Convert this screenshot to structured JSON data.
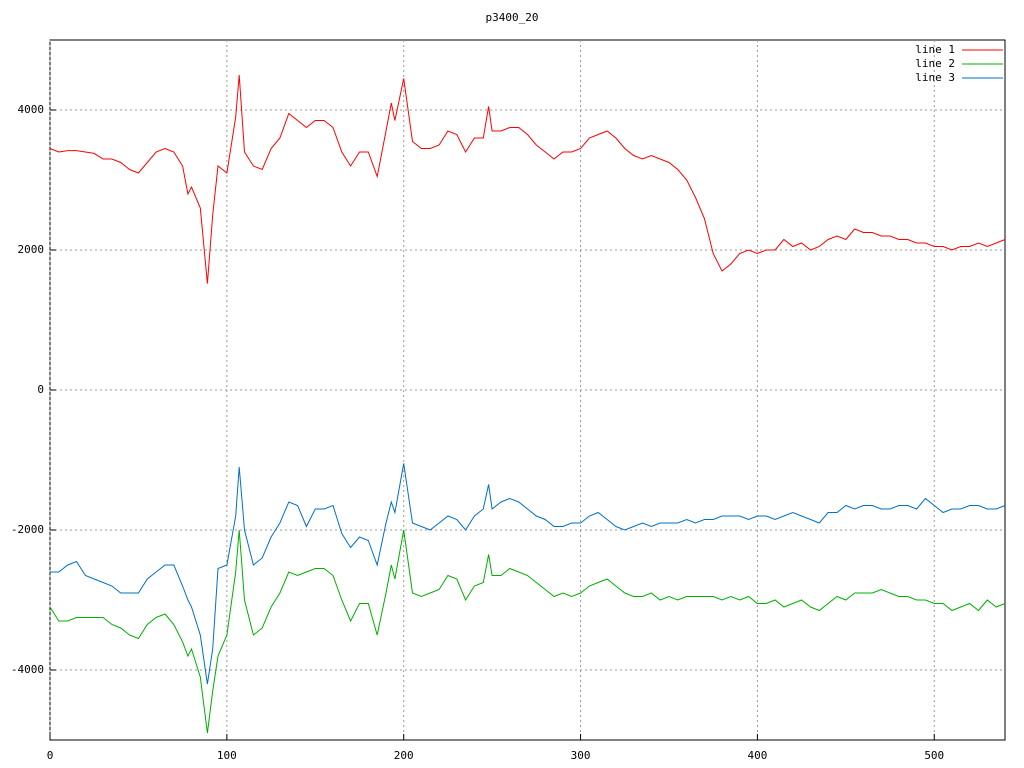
{
  "chart_data": {
    "type": "line",
    "title": "p3400_20",
    "x": [
      0,
      5,
      10,
      15,
      20,
      25,
      30,
      35,
      40,
      45,
      50,
      55,
      60,
      65,
      70,
      75,
      78,
      80,
      85,
      89,
      92,
      95,
      100,
      105,
      107,
      110,
      115,
      120,
      125,
      130,
      135,
      140,
      145,
      150,
      155,
      160,
      165,
      170,
      175,
      180,
      185,
      190,
      193,
      195,
      200,
      205,
      210,
      215,
      220,
      225,
      230,
      235,
      240,
      245,
      248,
      250,
      255,
      260,
      265,
      270,
      275,
      280,
      285,
      290,
      295,
      300,
      305,
      310,
      315,
      320,
      325,
      330,
      335,
      340,
      345,
      350,
      355,
      360,
      365,
      370,
      375,
      380,
      385,
      390,
      395,
      400,
      405,
      410,
      415,
      420,
      425,
      430,
      435,
      440,
      445,
      450,
      455,
      460,
      465,
      470,
      475,
      480,
      485,
      490,
      495,
      500,
      505,
      510,
      515,
      520,
      525,
      530,
      535,
      540
    ],
    "series": [
      {
        "name": "line 1",
        "color": "#ff0000",
        "values": [
          3450,
          3400,
          3420,
          3420,
          3400,
          3380,
          3300,
          3300,
          3250,
          3150,
          3100,
          3250,
          3400,
          3450,
          3400,
          3200,
          2800,
          2900,
          2600,
          1520,
          2500,
          3200,
          3100,
          3900,
          4500,
          3400,
          3200,
          3150,
          3450,
          3600,
          3950,
          3850,
          3750,
          3850,
          3850,
          3750,
          3400,
          3200,
          3400,
          3400,
          3050,
          3700,
          4100,
          3850,
          4450,
          3550,
          3450,
          3450,
          3500,
          3700,
          3650,
          3400,
          3600,
          3600,
          4050,
          3700,
          3700,
          3750,
          3750,
          3650,
          3500,
          3400,
          3300,
          3400,
          3400,
          3450,
          3600,
          3650,
          3700,
          3600,
          3450,
          3350,
          3300,
          3350,
          3300,
          3250,
          3150,
          3000,
          2750,
          2450,
          1950,
          1700,
          1800,
          1950,
          2000,
          1950,
          2000,
          2000,
          2150,
          2050,
          2100,
          2000,
          2050,
          2150,
          2200,
          2150,
          2300,
          2250,
          2250,
          2200,
          2200,
          2150,
          2150,
          2100,
          2100,
          2050,
          2050,
          2000,
          2050,
          2050,
          2100,
          2050,
          2100,
          2150
        ]
      },
      {
        "name": "line 2",
        "color": "#00b000",
        "values": [
          -3100,
          -3300,
          -3300,
          -3250,
          -3250,
          -3250,
          -3250,
          -3350,
          -3400,
          -3500,
          -3550,
          -3350,
          -3250,
          -3200,
          -3350,
          -3600,
          -3800,
          -3700,
          -4100,
          -4900,
          -4300,
          -3800,
          -3500,
          -2600,
          -2000,
          -3000,
          -3500,
          -3400,
          -3100,
          -2900,
          -2600,
          -2650,
          -2600,
          -2550,
          -2550,
          -2650,
          -3000,
          -3300,
          -3050,
          -3050,
          -3500,
          -2900,
          -2500,
          -2700,
          -2000,
          -2900,
          -2950,
          -2900,
          -2850,
          -2650,
          -2700,
          -3000,
          -2800,
          -2750,
          -2350,
          -2650,
          -2650,
          -2550,
          -2600,
          -2650,
          -2750,
          -2850,
          -2950,
          -2900,
          -2950,
          -2900,
          -2800,
          -2750,
          -2700,
          -2800,
          -2900,
          -2950,
          -2950,
          -2900,
          -3000,
          -2950,
          -3000,
          -2950,
          -2950,
          -2950,
          -2950,
          -3000,
          -2950,
          -3000,
          -2950,
          -3050,
          -3050,
          -3000,
          -3100,
          -3050,
          -3000,
          -3100,
          -3150,
          -3050,
          -2950,
          -3000,
          -2900,
          -2900,
          -2900,
          -2850,
          -2900,
          -2950,
          -2950,
          -3000,
          -3000,
          -3050,
          -3050,
          -3150,
          -3100,
          -3050,
          -3150,
          -3000,
          -3100,
          -3050
        ]
      },
      {
        "name": "line 3",
        "color": "#0070c8",
        "values": [
          -2600,
          -2600,
          -2500,
          -2450,
          -2650,
          -2700,
          -2750,
          -2800,
          -2900,
          -2900,
          -2900,
          -2700,
          -2600,
          -2500,
          -2500,
          -2800,
          -3000,
          -3100,
          -3500,
          -4200,
          -3700,
          -2550,
          -2500,
          -1800,
          -1100,
          -2000,
          -2500,
          -2400,
          -2100,
          -1900,
          -1600,
          -1650,
          -1950,
          -1700,
          -1700,
          -1650,
          -2050,
          -2250,
          -2100,
          -2150,
          -2500,
          -1900,
          -1600,
          -1750,
          -1050,
          -1900,
          -1950,
          -2000,
          -1900,
          -1800,
          -1850,
          -2000,
          -1800,
          -1700,
          -1350,
          -1700,
          -1600,
          -1550,
          -1600,
          -1700,
          -1800,
          -1850,
          -1950,
          -1950,
          -1900,
          -1900,
          -1800,
          -1750,
          -1850,
          -1950,
          -2000,
          -1950,
          -1900,
          -1950,
          -1900,
          -1900,
          -1900,
          -1850,
          -1900,
          -1850,
          -1850,
          -1800,
          -1800,
          -1800,
          -1850,
          -1800,
          -1800,
          -1850,
          -1800,
          -1750,
          -1800,
          -1850,
          -1900,
          -1750,
          -1750,
          -1650,
          -1700,
          -1650,
          -1650,
          -1700,
          -1700,
          -1650,
          -1650,
          -1700,
          -1550,
          -1650,
          -1750,
          -1700,
          -1700,
          -1650,
          -1650,
          -1700,
          -1700,
          -1650
        ]
      }
    ],
    "xlim": [
      0,
      540
    ],
    "ylim": [
      -5000,
      5000
    ],
    "xticks": [
      0,
      100,
      200,
      300,
      400,
      500
    ],
    "yticks": [
      -4000,
      -2000,
      0,
      2000,
      4000
    ],
    "grid": true,
    "legend": "top right"
  }
}
